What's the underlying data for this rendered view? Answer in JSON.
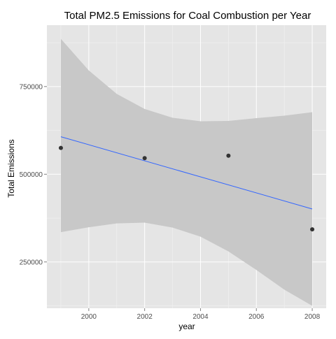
{
  "chart_data": {
    "type": "scatter",
    "title": "Total PM2.5 Emissions for Coal Combustion per Year",
    "xlabel": "year",
    "ylabel": "Total Emissions",
    "xlim": [
      1998.5,
      2008.5
    ],
    "ylim": [
      118000,
      925000
    ],
    "x_ticks": [
      2000,
      2002,
      2004,
      2006,
      2008
    ],
    "y_ticks": [
      250000,
      500000,
      750000
    ],
    "x_tick_labels": [
      "2000",
      "2002",
      "2004",
      "2006",
      "2008"
    ],
    "y_tick_labels": [
      "250000",
      "500000",
      "750000"
    ],
    "grid": true,
    "legend": "none",
    "points": [
      {
        "x": 1999,
        "y": 575000
      },
      {
        "x": 2002,
        "y": 546000
      },
      {
        "x": 2005,
        "y": 553000
      },
      {
        "x": 2008,
        "y": 343000
      }
    ],
    "trend_line": {
      "x": [
        1999,
        2008
      ],
      "y": [
        607000,
        401000
      ]
    },
    "confidence_band": {
      "x": [
        1999,
        2000,
        2001,
        2002,
        2003,
        2004,
        2005,
        2006,
        2007,
        2008
      ],
      "upper": [
        886000,
        796000,
        729000,
        686000,
        661000,
        651000,
        652000,
        660000,
        667000,
        677000
      ],
      "lower": [
        335000,
        349000,
        360000,
        362000,
        348000,
        322000,
        280000,
        227000,
        171000,
        125000
      ]
    },
    "colors": {
      "panel": "#e5e5e5",
      "band": "#c8c8c8",
      "line": "#3366ff",
      "point": "#333333"
    }
  }
}
